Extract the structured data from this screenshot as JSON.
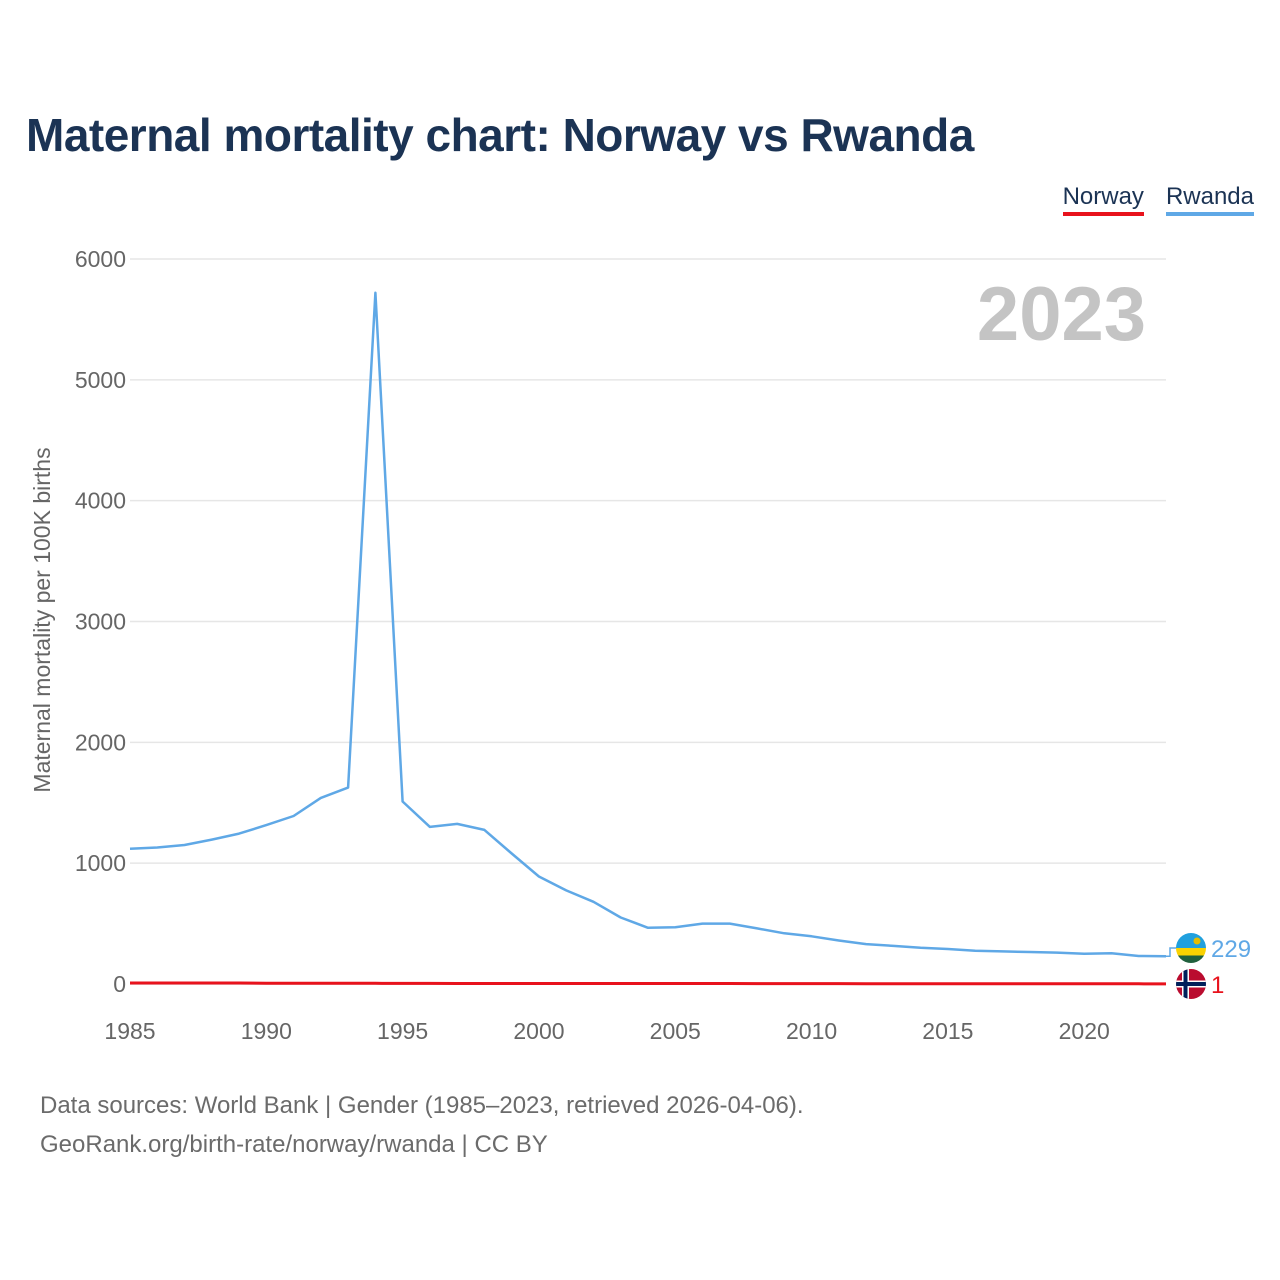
{
  "title": "Maternal mortality chart: Norway vs Rwanda",
  "legend": [
    {
      "label": "Norway",
      "color": "#e8121c"
    },
    {
      "label": "Rwanda",
      "color": "#5fa8e6"
    }
  ],
  "year_label": "2023",
  "footer": {
    "line1": "Data sources: World Bank | Gender (1985–2023, retrieved 2026-04-06).",
    "line2": "GeoRank.org/birth-rate/norway/rwanda | CC BY"
  },
  "chart_data": {
    "type": "line",
    "title": "Maternal mortality chart: Norway vs Rwanda",
    "xlabel": "",
    "ylabel": "Maternal mortality per 100K births",
    "xlim": [
      1985,
      2023
    ],
    "ylim": [
      0,
      6000
    ],
    "xticks": [
      1985,
      1990,
      1995,
      2000,
      2005,
      2010,
      2015,
      2020
    ],
    "yticks": [
      0,
      1000,
      2000,
      3000,
      4000,
      5000,
      6000
    ],
    "grid": true,
    "legend_position": "top-right",
    "x": [
      1985,
      1986,
      1987,
      1988,
      1989,
      1990,
      1991,
      1992,
      1993,
      1994,
      1995,
      1996,
      1997,
      1998,
      1999,
      2000,
      2001,
      2002,
      2003,
      2004,
      2005,
      2006,
      2007,
      2008,
      2009,
      2010,
      2011,
      2012,
      2013,
      2014,
      2015,
      2016,
      2017,
      2018,
      2019,
      2020,
      2021,
      2022,
      2023
    ],
    "series": [
      {
        "name": "Norway",
        "color": "#e8121c",
        "end_label": "1",
        "values": [
          8,
          8,
          8,
          8,
          8,
          7,
          7,
          7,
          6,
          6,
          5,
          5,
          4,
          4,
          4,
          4,
          4,
          4,
          4,
          4,
          4,
          4,
          4,
          3,
          3,
          3,
          3,
          2,
          2,
          2,
          2,
          2,
          2,
          2,
          2,
          2,
          2,
          2,
          1
        ]
      },
      {
        "name": "Rwanda",
        "color": "#5fa8e6",
        "end_label": "229",
        "values": [
          1120,
          1130,
          1150,
          1195,
          1245,
          1315,
          1390,
          1540,
          1625,
          5720,
          1510,
          1300,
          1325,
          1275,
          1080,
          890,
          775,
          680,
          550,
          465,
          470,
          500,
          500,
          460,
          420,
          395,
          360,
          330,
          315,
          300,
          290,
          275,
          270,
          265,
          260,
          250,
          255,
          232,
          229
        ]
      }
    ]
  }
}
